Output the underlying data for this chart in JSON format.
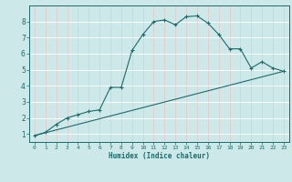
{
  "xlabel": "Humidex (Indice chaleur)",
  "bg_color": "#cce8e8",
  "grid_color": "#ffffff",
  "line_color": "#1a6b6b",
  "xlim": [
    -0.5,
    23.5
  ],
  "ylim": [
    0.5,
    9.0
  ],
  "xticks": [
    0,
    1,
    2,
    3,
    4,
    5,
    6,
    7,
    8,
    9,
    10,
    11,
    12,
    13,
    14,
    15,
    16,
    17,
    18,
    19,
    20,
    21,
    22,
    23
  ],
  "yticks": [
    1,
    2,
    3,
    4,
    5,
    6,
    7,
    8
  ],
  "line1_x": [
    0,
    1,
    2,
    3,
    4,
    5,
    6,
    7,
    8,
    9,
    10,
    11,
    12,
    13,
    14,
    15,
    16,
    17,
    18,
    19,
    20,
    21,
    22,
    23
  ],
  "line1_y": [
    0.9,
    1.1,
    1.6,
    2.0,
    2.2,
    2.4,
    2.5,
    3.9,
    3.9,
    6.2,
    7.2,
    8.0,
    8.1,
    7.8,
    8.3,
    8.35,
    7.9,
    7.2,
    6.3,
    6.3,
    5.1,
    5.5,
    5.1,
    4.9
  ],
  "line2_x": [
    0,
    23
  ],
  "line2_y": [
    0.9,
    4.9
  ],
  "marker_symbol": "+"
}
